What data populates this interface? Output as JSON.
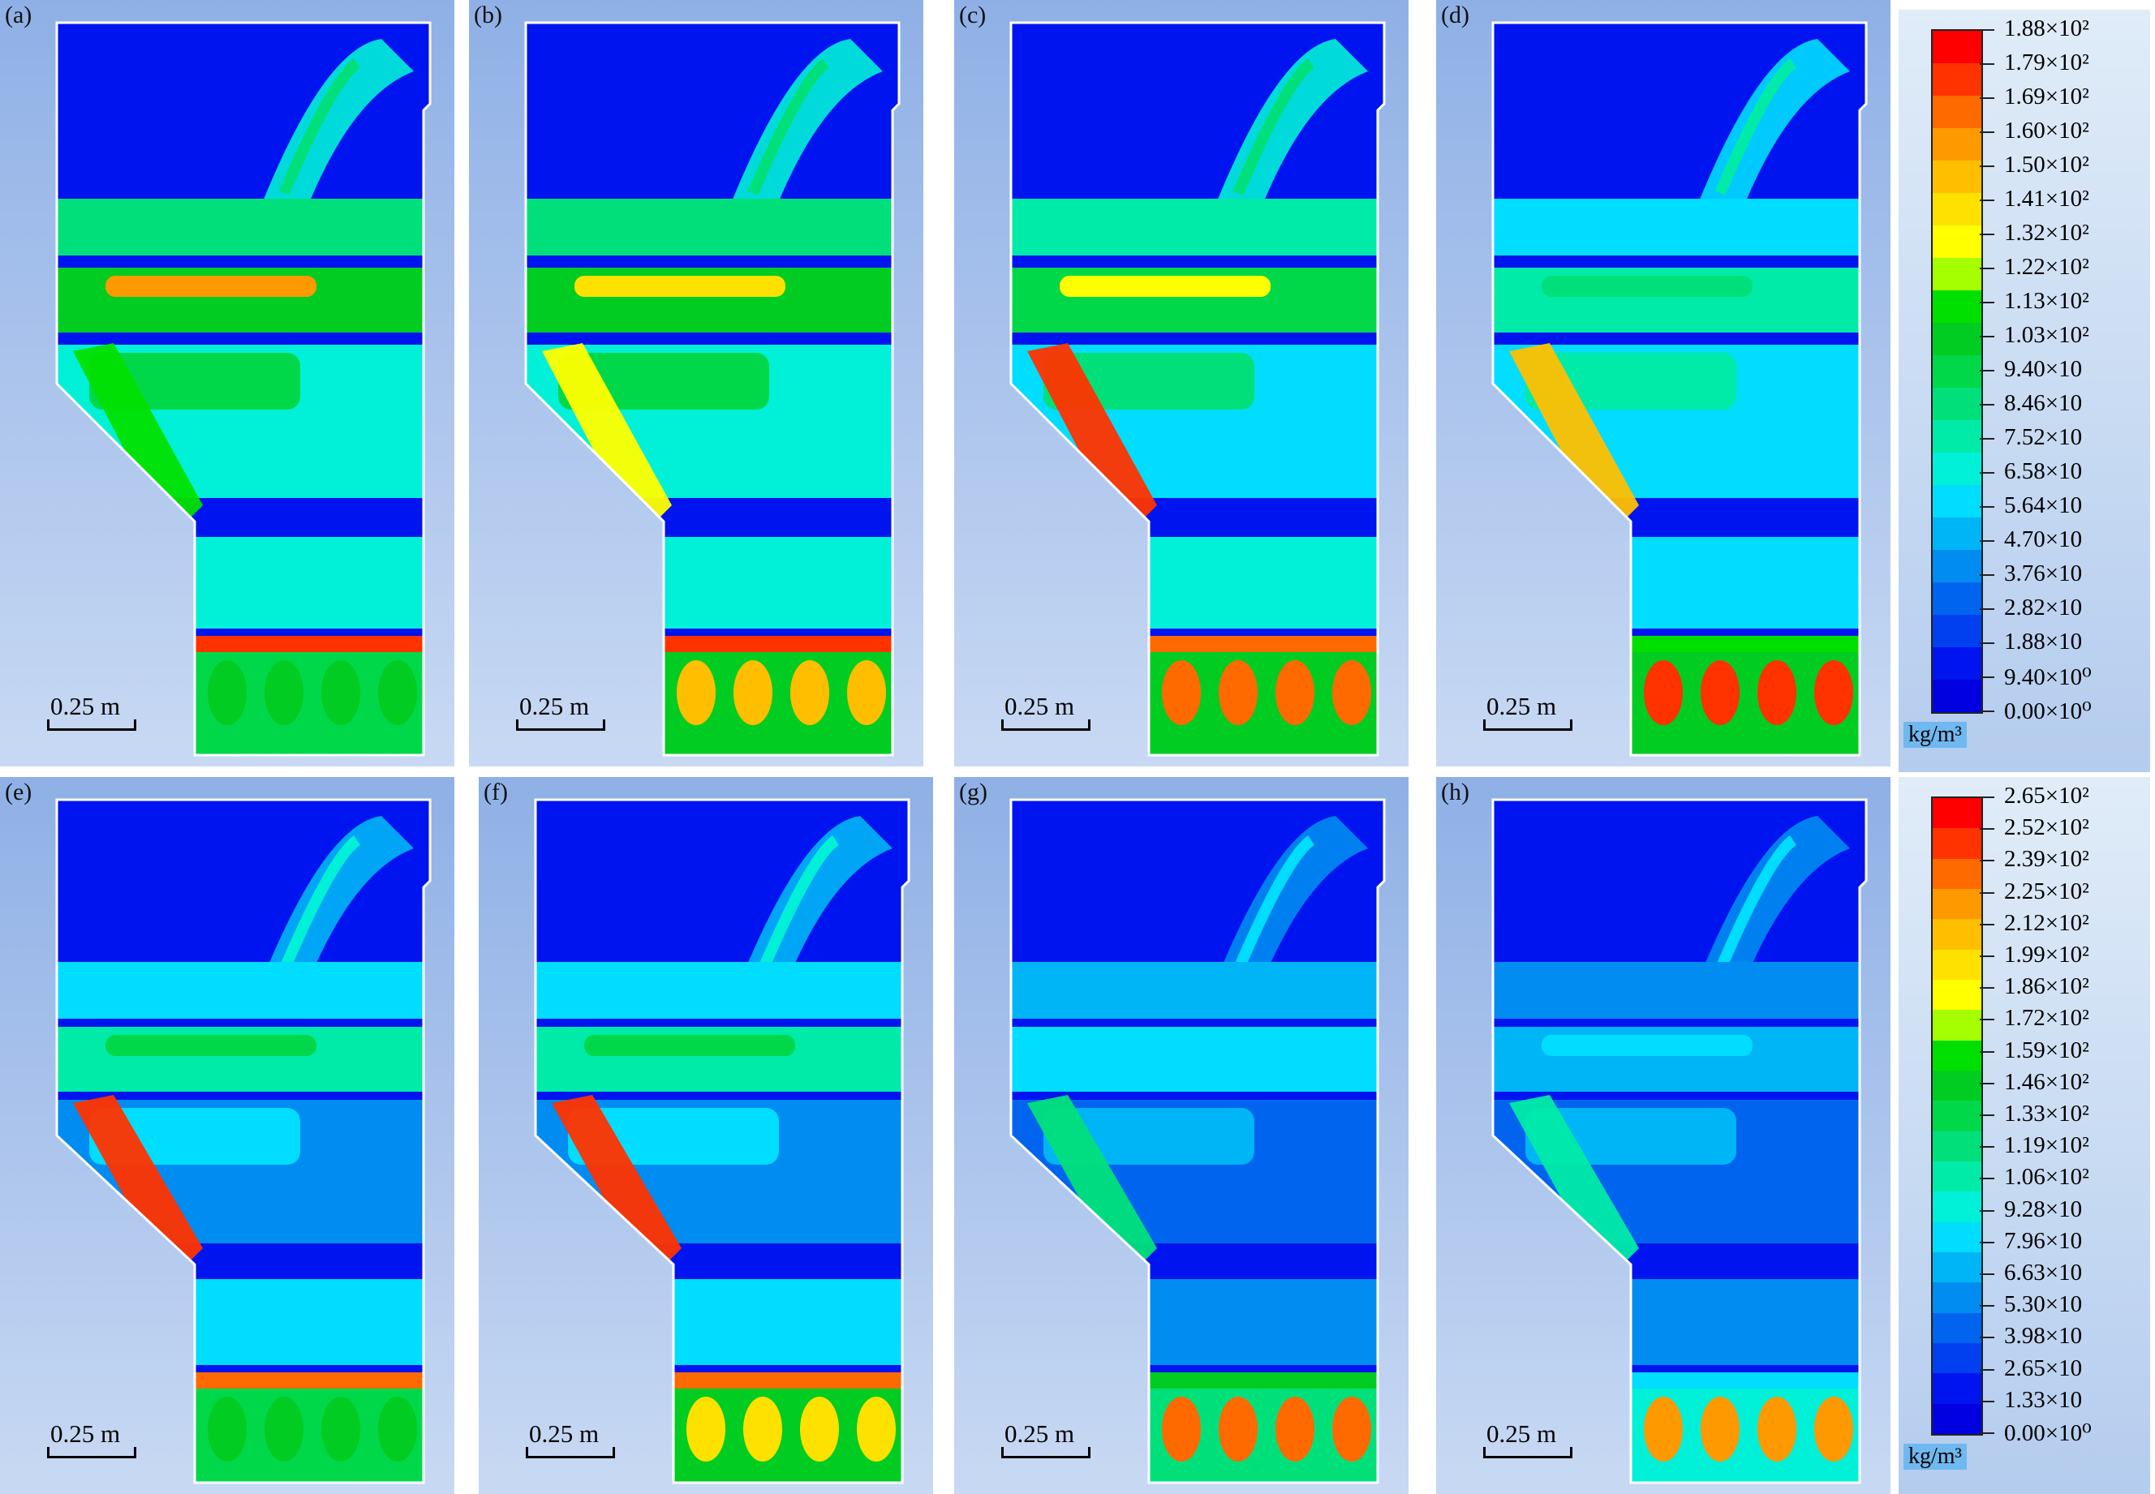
{
  "panels": [
    {
      "label": "(a)",
      "scale": "0.25 m"
    },
    {
      "label": "(b)",
      "scale": "0.25 m"
    },
    {
      "label": "(c)",
      "scale": "0.25 m"
    },
    {
      "label": "(d)",
      "scale": "0.25 m"
    },
    {
      "label": "(e)",
      "scale": "0.25 m"
    },
    {
      "label": "(f)",
      "scale": "0.25 m"
    },
    {
      "label": "(g)",
      "scale": "0.25 m"
    },
    {
      "label": "(h)",
      "scale": "0.25 m"
    }
  ],
  "legend_top": {
    "unit": "kg/m³",
    "ticks": [
      "1.88×10²",
      "1.79×10²",
      "1.69×10²",
      "1.60×10²",
      "1.50×10²",
      "1.41×10²",
      "1.32×10²",
      "1.22×10²",
      "1.13×10²",
      "1.03×10²",
      "9.40×10",
      "8.46×10",
      "7.52×10",
      "6.58×10",
      "5.64×10",
      "4.70×10",
      "3.76×10",
      "2.82×10",
      "1.88×10",
      "9.40×10⁰",
      "0.00×10⁰"
    ]
  },
  "legend_bottom": {
    "unit": "kg/m³",
    "ticks": [
      "2.65×10²",
      "2.52×10²",
      "2.39×10²",
      "2.25×10²",
      "2.12×10²",
      "1.99×10²",
      "1.86×10²",
      "1.72×10²",
      "1.59×10²",
      "1.46×10²",
      "1.33×10²",
      "1.19×10²",
      "1.06×10²",
      "9.28×10",
      "7.96×10",
      "6.63×10",
      "5.30×10",
      "3.98×10",
      "2.65×10",
      "1.33×10",
      "0.00×10⁰"
    ]
  },
  "colors": {
    "scale_bands": [
      "#ff0000",
      "#ff3300",
      "#ff6a00",
      "#ff9900",
      "#ffbf00",
      "#ffe100",
      "#ffff00",
      "#a6ff00",
      "#00e000",
      "#00cc22",
      "#00d84a",
      "#00e07a",
      "#00eba8",
      "#00f0d8",
      "#00ddff",
      "#00b5f5",
      "#008cf0",
      "#0064ee",
      "#0040ee",
      "#0014ef",
      "#0000e0"
    ],
    "frame_bg": "#9fbde8",
    "domain_blue": "#0019e8"
  }
}
